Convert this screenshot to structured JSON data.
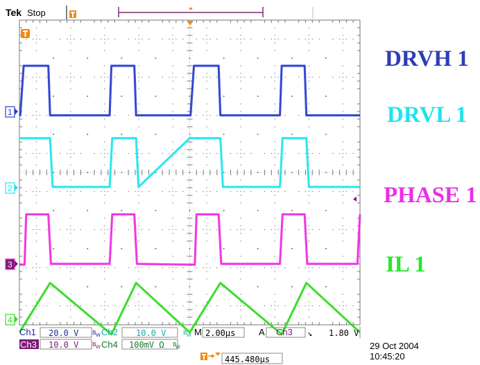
{
  "header": {
    "brand": "Tek",
    "state": "Stop"
  },
  "chart_data": {
    "type": "line",
    "title": "",
    "xlabel": "",
    "ylabel": "",
    "grid": true,
    "divisions": {
      "x": 10,
      "y": 8
    },
    "time_per_div_us": 2.0,
    "x_range_us": [
      0,
      20
    ],
    "series": [
      {
        "name": "DRVH 1",
        "channel": "1",
        "color": "#2b3fd0",
        "label_color": "#2e3db8",
        "volts_per_div": 20.0,
        "ground_div": 5.6,
        "unit": "V",
        "x": [
          0,
          0.05,
          0.25,
          0.35,
          1.7,
          1.8,
          5.3,
          5.4,
          6.75,
          6.85,
          10.0,
          10.05,
          10.25,
          10.35,
          11.7,
          11.8,
          15.3,
          15.4,
          16.75,
          16.85,
          20.0
        ],
        "y": [
          -2,
          -2,
          24,
          24,
          24,
          -2,
          -2,
          24,
          24,
          -2,
          -2,
          -2,
          24,
          24,
          24,
          -2,
          -2,
          24,
          24,
          -2,
          -2
        ]
      },
      {
        "name": "DRVL 1",
        "channel": "2",
        "color": "#1fe6ee",
        "label_color": "#1fe3ee",
        "volts_per_div": 10.0,
        "ground_div": 3.6,
        "unit": "V",
        "x": [
          0,
          1.8,
          1.95,
          5.3,
          5.45,
          6.85,
          7.0,
          10.0,
          11.8,
          11.95,
          15.3,
          15.45,
          16.85,
          17.0,
          20.0
        ],
        "y": [
          13,
          13,
          0.2,
          0.2,
          13,
          13,
          0.2,
          13,
          13,
          0.2,
          0.2,
          13,
          13,
          0.2,
          0.2
        ]
      },
      {
        "name": "PHASE 1",
        "channel": "3",
        "color": "#ee2ee6",
        "label_color": "#ea2fe6",
        "volts_per_div": 10.0,
        "ground_div": 1.6,
        "unit": "V",
        "x": [
          0,
          0.3,
          0.4,
          1.7,
          1.85,
          5.3,
          5.45,
          6.75,
          6.9,
          10.0,
          10.3,
          10.4,
          11.7,
          11.85,
          15.3,
          15.45,
          16.75,
          16.9,
          19.85,
          20.0
        ],
        "y": [
          -0.2,
          -0.2,
          13,
          13,
          0,
          0,
          13,
          13,
          0,
          -0.2,
          -0.2,
          13,
          13,
          0,
          0,
          13,
          13,
          0,
          0,
          13
        ]
      },
      {
        "name": "IL 1",
        "channel": "4",
        "color": "#33dd22",
        "label_color": "#29e62b",
        "volts_per_div": 0.1,
        "ground_div": -0.5,
        "unit": "V",
        "x": [
          0,
          1.8,
          5.4,
          6.85,
          10.0,
          11.8,
          15.4,
          16.85,
          20.0
        ],
        "y": [
          0.03,
          0.16,
          0.025,
          0.16,
          0.03,
          0.16,
          0.025,
          0.16,
          0.03
        ]
      }
    ]
  },
  "readout": {
    "ch1_label": "Ch1",
    "ch1_scale": "20.0 V",
    "ch2_label": "Ch2",
    "ch2_scale": "10.0 V",
    "ch3_label": "Ch3",
    "ch3_scale": "10.0 V",
    "ch4_label": "Ch4",
    "ch4_scale": "100mV Ω",
    "timebase_prefix": "M",
    "timebase": "2.00µs",
    "trigger_mode": "A",
    "trigger_source": "Ch3",
    "trigger_slope": "↘",
    "trigger_level": "1.80 V",
    "trigger_position": "445.480µs",
    "date": "29 Oct  2004",
    "time": "10:45:20"
  },
  "colors": {
    "graticule": "#777777",
    "ch1": "#2b3fd0",
    "ch2": "#1fe6ee",
    "ch3": "#ee2ee6",
    "ch4": "#33dd22",
    "ch3_box": "#7d1a74",
    "trigger": "#f08a14",
    "marker_bar": "#7e2a76"
  },
  "icons": {
    "trigger_marker": "t-orange-icon",
    "bandwidth_limit": "bw-icon"
  }
}
